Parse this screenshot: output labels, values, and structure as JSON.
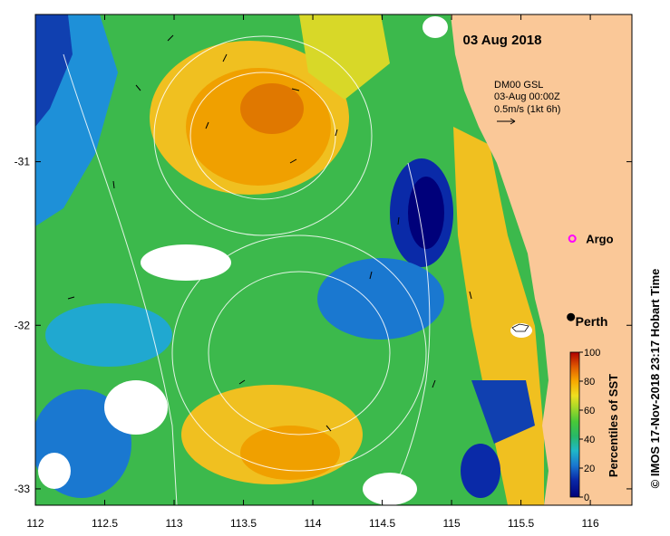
{
  "title_date": "03 Aug 2018",
  "model_info": {
    "line1": "DM00 GSL",
    "line2": "03-Aug 00:00Z",
    "line3": "0.5m/s (1kt 6h)"
  },
  "places": [
    {
      "name": "Argo",
      "lon": 115.87,
      "lat": -31.47,
      "marker": "magenta-ring"
    },
    {
      "name": "Perth",
      "lon": 115.86,
      "lat": -31.95,
      "marker": "black-dot"
    }
  ],
  "axes": {
    "x_ticks": [
      "112",
      "112.5",
      "113",
      "113.5",
      "114",
      "114.5",
      "115",
      "115.5",
      "116"
    ],
    "x_values": [
      112,
      112.5,
      113,
      113.5,
      114,
      114.5,
      115,
      115.5,
      116
    ],
    "y_ticks": [
      "-31",
      "-32",
      "-33"
    ],
    "y_values": [
      -31,
      -32,
      -33
    ],
    "lon_range": [
      112,
      116.3
    ],
    "lat_range": [
      -33.1,
      -30.1
    ]
  },
  "colorbar": {
    "label": "Percentiles of SST",
    "ticks": [
      "0",
      "20",
      "40",
      "60",
      "80",
      "100"
    ],
    "colors": [
      "#00007a",
      "#0a2aa8",
      "#1260c8",
      "#1a9ad8",
      "#20c0b0",
      "#28b868",
      "#48c838",
      "#9ad828",
      "#e8e020",
      "#f8b800",
      "#f08800",
      "#e05000",
      "#b80800"
    ]
  },
  "credit": "© IMOS 17-Nov-2018 23:17 Hobart Time",
  "colors": {
    "land": "#fac898",
    "current_arrow": "#000000",
    "contour": "#ffffff"
  }
}
